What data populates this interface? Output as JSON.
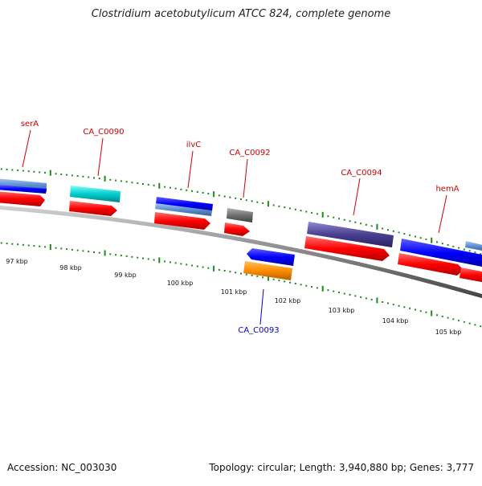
{
  "title": "Clostridium acetobutylicum ATCC 824, complete genome",
  "footer": {
    "accession": "Accession: NC_003030",
    "summary": "Topology: circular; Length: 3,940,880 bp; Genes: 3,777"
  },
  "colors": {
    "label_forward": "#cc0000",
    "label_reverse": "#0000cc",
    "backbone": "#888888",
    "tick": "#1a8a1a",
    "cds_red": "#ff0000",
    "gene_blue": "#0000ff",
    "gene_cyan": "#00cccc",
    "gene_steel": "#5a8fcf",
    "gene_gray": "#707070",
    "gene_slate": "#4a4090",
    "gene_orange": "#ff8c00"
  },
  "scale_labels": [
    "97 kbp",
    "98 kbp",
    "99 kbp",
    "100 kbp",
    "101 kbp",
    "102 kbp",
    "103 kbp",
    "104 kbp",
    "105 kbp"
  ],
  "gene_labels": [
    {
      "id": "serA",
      "text": "serA",
      "strand": "forward"
    },
    {
      "id": "ca-c0090",
      "text": "CA_C0090",
      "strand": "forward"
    },
    {
      "id": "ilvc",
      "text": "ilvC",
      "strand": "forward"
    },
    {
      "id": "ca-c0092",
      "text": "CA_C0092",
      "strand": "forward"
    },
    {
      "id": "ca-c0094",
      "text": "CA_C0094",
      "strand": "forward"
    },
    {
      "id": "hema",
      "text": "hemA",
      "strand": "forward"
    },
    {
      "id": "ca-c0093",
      "text": "CA_C0093",
      "strand": "reverse"
    }
  ]
}
